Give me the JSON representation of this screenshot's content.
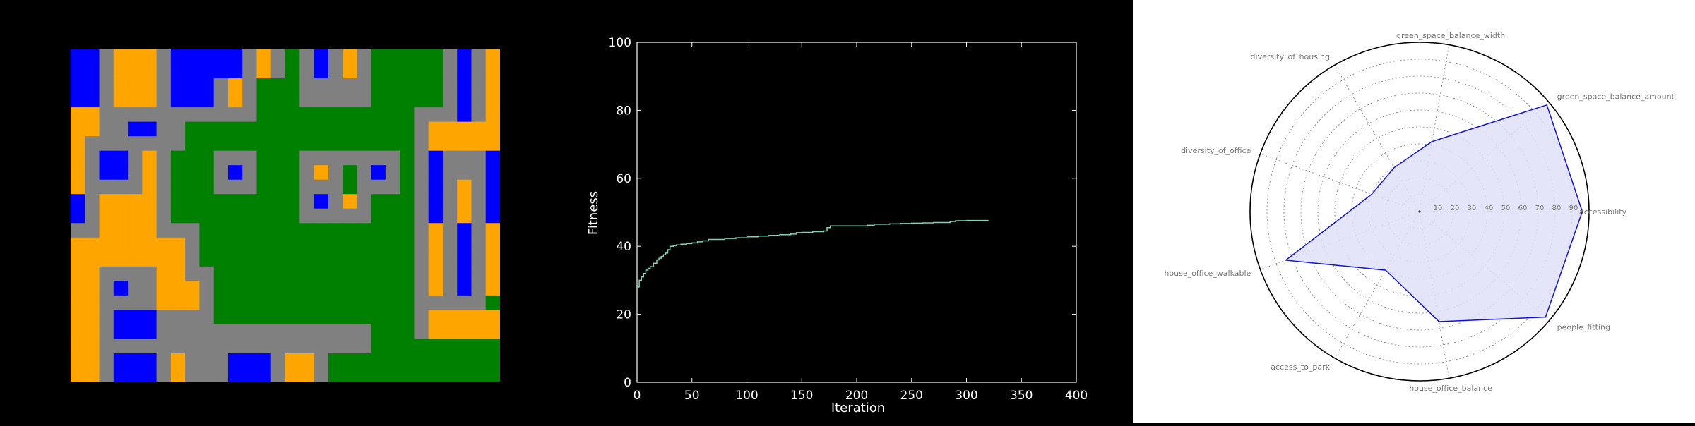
{
  "colors": {
    "background": "#000000",
    "grid_palette": {
      "0": "#808080",
      "1": "#ffa500",
      "2": "#0000ff",
      "3": "#008000"
    },
    "fitness_line": "#7fd4b8",
    "radar_line": "#1010e0",
    "radar_fill": "#e0e0f8"
  },
  "chart_data": [
    {
      "type": "heatmap",
      "description": "city block layout grid (0=road,1=housing,2=office,3=green)",
      "rows": 23,
      "cols": 30,
      "values": [
        [
          2,
          2,
          0,
          1,
          1,
          1,
          0,
          2,
          2,
          2,
          2,
          2,
          0,
          1,
          0,
          3,
          0,
          2,
          0,
          1,
          0,
          3,
          3,
          3,
          3,
          3,
          0,
          2,
          0,
          1
        ],
        [
          2,
          2,
          0,
          1,
          1,
          1,
          0,
          2,
          2,
          2,
          2,
          2,
          0,
          1,
          0,
          3,
          0,
          2,
          0,
          1,
          0,
          3,
          3,
          3,
          3,
          3,
          0,
          2,
          0,
          1
        ],
        [
          2,
          2,
          0,
          1,
          1,
          1,
          0,
          2,
          2,
          2,
          0,
          1,
          0,
          3,
          3,
          3,
          0,
          0,
          0,
          0,
          0,
          3,
          3,
          3,
          3,
          3,
          0,
          2,
          0,
          1
        ],
        [
          2,
          2,
          0,
          1,
          1,
          1,
          0,
          2,
          2,
          2,
          0,
          1,
          0,
          3,
          3,
          3,
          0,
          0,
          0,
          0,
          0,
          3,
          3,
          3,
          3,
          3,
          0,
          2,
          0,
          1
        ],
        [
          1,
          1,
          0,
          0,
          0,
          0,
          0,
          0,
          0,
          0,
          0,
          0,
          0,
          3,
          3,
          3,
          3,
          3,
          3,
          3,
          3,
          3,
          3,
          3,
          0,
          0,
          0,
          2,
          0,
          1
        ],
        [
          1,
          1,
          0,
          0,
          2,
          2,
          0,
          0,
          3,
          3,
          3,
          3,
          3,
          3,
          3,
          3,
          3,
          3,
          3,
          3,
          3,
          3,
          3,
          3,
          0,
          1,
          1,
          1,
          1,
          1
        ],
        [
          1,
          0,
          0,
          0,
          0,
          0,
          0,
          0,
          3,
          3,
          3,
          3,
          3,
          3,
          3,
          3,
          3,
          3,
          3,
          3,
          3,
          3,
          3,
          3,
          0,
          1,
          1,
          1,
          1,
          1
        ],
        [
          1,
          0,
          2,
          2,
          0,
          1,
          0,
          3,
          3,
          3,
          0,
          0,
          0,
          3,
          3,
          3,
          0,
          0,
          0,
          0,
          0,
          0,
          0,
          3,
          0,
          2,
          0,
          0,
          0,
          2
        ],
        [
          1,
          0,
          2,
          2,
          0,
          1,
          0,
          3,
          3,
          3,
          0,
          2,
          0,
          3,
          3,
          3,
          0,
          1,
          0,
          3,
          0,
          2,
          0,
          3,
          0,
          2,
          0,
          0,
          0,
          2
        ],
        [
          1,
          0,
          0,
          0,
          0,
          1,
          0,
          3,
          3,
          3,
          0,
          0,
          0,
          3,
          3,
          3,
          0,
          0,
          0,
          3,
          0,
          0,
          0,
          3,
          0,
          2,
          0,
          1,
          0,
          2
        ],
        [
          2,
          0,
          1,
          1,
          1,
          1,
          0,
          3,
          3,
          3,
          3,
          3,
          3,
          3,
          3,
          3,
          0,
          2,
          0,
          1,
          0,
          3,
          3,
          3,
          0,
          2,
          0,
          1,
          0,
          2
        ],
        [
          2,
          0,
          1,
          1,
          1,
          1,
          0,
          3,
          3,
          3,
          3,
          3,
          3,
          3,
          3,
          3,
          0,
          0,
          0,
          0,
          0,
          3,
          3,
          3,
          0,
          2,
          0,
          1,
          0,
          2
        ],
        [
          0,
          0,
          1,
          1,
          1,
          1,
          0,
          0,
          0,
          3,
          3,
          3,
          3,
          3,
          3,
          3,
          3,
          3,
          3,
          3,
          3,
          3,
          3,
          3,
          0,
          1,
          0,
          2,
          0,
          1
        ],
        [
          1,
          1,
          1,
          1,
          1,
          1,
          1,
          1,
          0,
          3,
          3,
          3,
          3,
          3,
          3,
          3,
          3,
          3,
          3,
          3,
          3,
          3,
          3,
          3,
          0,
          1,
          0,
          2,
          0,
          1
        ],
        [
          1,
          1,
          1,
          1,
          1,
          1,
          1,
          1,
          0,
          3,
          3,
          3,
          3,
          3,
          3,
          3,
          3,
          3,
          3,
          3,
          3,
          3,
          3,
          3,
          0,
          1,
          0,
          2,
          0,
          1
        ],
        [
          1,
          1,
          0,
          0,
          0,
          0,
          1,
          1,
          0,
          0,
          3,
          3,
          3,
          3,
          3,
          3,
          3,
          3,
          3,
          3,
          3,
          3,
          3,
          3,
          0,
          1,
          0,
          2,
          0,
          1
        ],
        [
          1,
          1,
          0,
          2,
          0,
          0,
          1,
          1,
          1,
          0,
          3,
          3,
          3,
          3,
          3,
          3,
          3,
          3,
          3,
          3,
          3,
          3,
          3,
          3,
          0,
          1,
          0,
          2,
          0,
          1
        ],
        [
          1,
          1,
          0,
          0,
          0,
          0,
          1,
          1,
          1,
          0,
          3,
          3,
          3,
          3,
          3,
          3,
          3,
          3,
          3,
          3,
          3,
          3,
          3,
          3,
          0,
          0,
          0,
          0,
          0,
          3
        ],
        [
          1,
          1,
          0,
          2,
          2,
          2,
          0,
          0,
          0,
          0,
          3,
          3,
          3,
          3,
          3,
          3,
          3,
          3,
          3,
          3,
          3,
          3,
          3,
          3,
          0,
          1,
          1,
          1,
          1,
          1
        ],
        [
          1,
          1,
          0,
          2,
          2,
          2,
          0,
          0,
          0,
          0,
          0,
          0,
          0,
          0,
          0,
          0,
          0,
          0,
          0,
          0,
          0,
          3,
          3,
          3,
          0,
          1,
          1,
          1,
          1,
          1
        ],
        [
          1,
          1,
          0,
          0,
          0,
          0,
          0,
          0,
          0,
          0,
          0,
          0,
          0,
          0,
          0,
          0,
          0,
          0,
          0,
          0,
          0,
          3,
          3,
          3,
          3,
          3,
          3,
          3,
          3,
          3
        ],
        [
          1,
          1,
          0,
          2,
          2,
          2,
          0,
          1,
          0,
          0,
          0,
          2,
          2,
          2,
          0,
          1,
          1,
          0,
          3,
          3,
          3,
          3,
          3,
          3,
          3,
          3,
          3,
          3,
          3,
          3
        ],
        [
          1,
          1,
          0,
          2,
          2,
          2,
          0,
          1,
          0,
          0,
          0,
          2,
          2,
          2,
          0,
          1,
          1,
          0,
          3,
          3,
          3,
          3,
          3,
          3,
          3,
          3,
          3,
          3,
          3,
          3
        ]
      ]
    },
    {
      "type": "line",
      "xlabel": "Iteration",
      "ylabel": "Fitness",
      "xlim": [
        0,
        400
      ],
      "ylim": [
        0,
        100
      ],
      "xticks": [
        0,
        50,
        100,
        150,
        200,
        250,
        300,
        350,
        400
      ],
      "yticks": [
        0,
        20,
        40,
        60,
        80,
        100
      ],
      "grid": false,
      "series": [
        {
          "x": [
            0,
            2,
            4,
            6,
            8,
            10,
            12,
            15,
            18,
            20,
            22,
            24,
            26,
            28,
            30,
            33,
            36,
            40,
            45,
            50,
            55,
            60,
            65,
            70,
            80,
            90,
            100,
            110,
            120,
            130,
            140,
            145,
            150,
            160,
            170,
            173,
            176,
            180,
            190,
            200,
            210,
            216,
            220,
            230,
            240,
            250,
            260,
            270,
            280,
            285,
            290,
            300,
            310,
            320
          ],
          "y": [
            28.0,
            30.0,
            31.0,
            32.0,
            33.0,
            33.5,
            34.0,
            35.0,
            36.0,
            36.5,
            37.0,
            37.5,
            38.0,
            39.0,
            40.0,
            40.2,
            40.4,
            40.6,
            40.8,
            41.0,
            41.3,
            41.6,
            42.0,
            42.0,
            42.3,
            42.5,
            42.8,
            43.0,
            43.2,
            43.4,
            43.6,
            44.0,
            44.1,
            44.3,
            44.5,
            45.5,
            46.0,
            46.0,
            46.0,
            46.0,
            46.2,
            46.5,
            46.5,
            46.6,
            46.7,
            46.8,
            46.9,
            47.0,
            47.0,
            47.3,
            47.5,
            47.6,
            47.6,
            47.6
          ]
        }
      ]
    },
    {
      "type": "radar",
      "axes": [
        "accessibility",
        "green_space_balance_amount",
        "green_space_balance_width",
        "diversity_of_housing",
        "diversity_of_office",
        "house_office_walkable",
        "access_to_park",
        "house_office_balance",
        "people_fitting"
      ],
      "values": [
        96,
        98,
        42,
        30,
        30,
        84,
        40,
        66,
        97
      ],
      "rlim": [
        0,
        100
      ],
      "rticks": [
        10,
        20,
        30,
        40,
        50,
        60,
        70,
        80,
        90
      ],
      "grid": true
    }
  ]
}
